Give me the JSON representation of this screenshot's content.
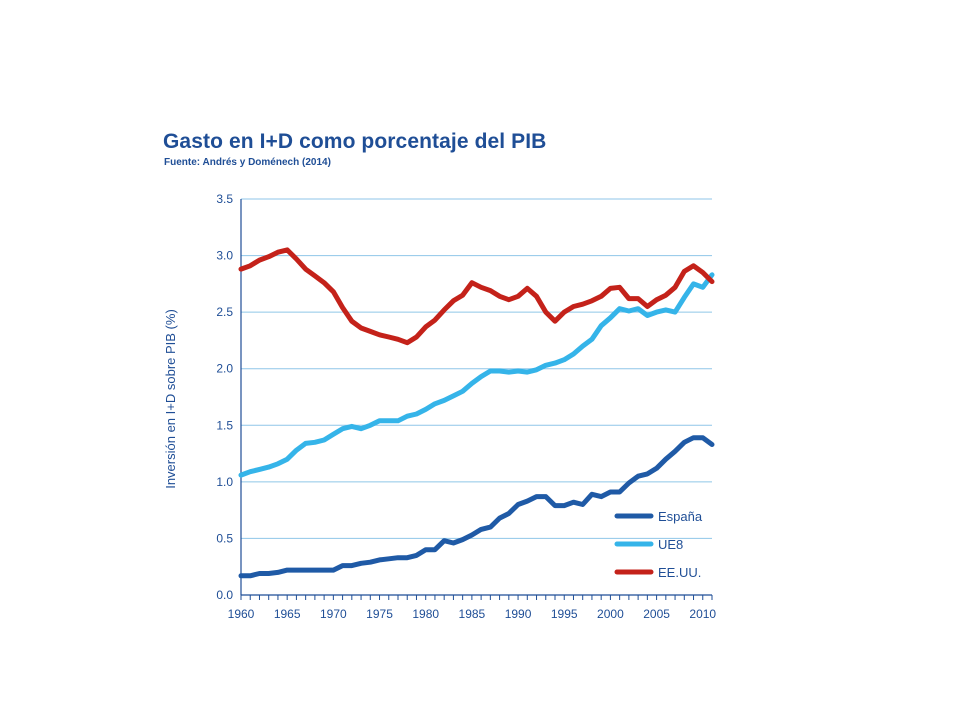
{
  "chart_data": {
    "type": "line",
    "title": "Gasto en I+D como porcentaje del PIB",
    "subtitle": "Fuente: Andrés y Doménech (2014)",
    "ylabel": "Inversión en I+D sobre PIB (%)",
    "xlabel": "",
    "xlim": [
      1960,
      2011
    ],
    "ylim": [
      0,
      3.5
    ],
    "grid": true,
    "legend_position": "bottom-right",
    "x_ticks": [
      "1960",
      "1965",
      "1970",
      "1975",
      "1980",
      "1985",
      "1990",
      "1995",
      "2000",
      "2005",
      "2010"
    ],
    "y_ticks": [
      "0.0",
      "0.5",
      "1.0",
      "1.5",
      "2.0",
      "2.5",
      "3.0",
      "3.5"
    ],
    "series": [
      {
        "name": "España",
        "color": "#1f5aa6",
        "x": [
          1960,
          1961,
          1962,
          1963,
          1964,
          1965,
          1966,
          1967,
          1968,
          1969,
          1970,
          1971,
          1972,
          1973,
          1974,
          1975,
          1976,
          1977,
          1978,
          1979,
          1980,
          1981,
          1982,
          1983,
          1984,
          1985,
          1986,
          1987,
          1988,
          1989,
          1990,
          1991,
          1992,
          1993,
          1994,
          1995,
          1996,
          1997,
          1998,
          1999,
          2000,
          2001,
          2002,
          2003,
          2004,
          2005,
          2006,
          2007,
          2008,
          2009,
          2010,
          2011
        ],
        "values": [
          0.17,
          0.17,
          0.19,
          0.19,
          0.2,
          0.22,
          0.22,
          0.22,
          0.22,
          0.22,
          0.22,
          0.26,
          0.26,
          0.28,
          0.29,
          0.31,
          0.32,
          0.33,
          0.33,
          0.35,
          0.4,
          0.4,
          0.48,
          0.46,
          0.49,
          0.53,
          0.58,
          0.6,
          0.68,
          0.72,
          0.8,
          0.83,
          0.87,
          0.87,
          0.79,
          0.79,
          0.82,
          0.8,
          0.89,
          0.87,
          0.91,
          0.91,
          0.99,
          1.05,
          1.07,
          1.12,
          1.2,
          1.27,
          1.35,
          1.39,
          1.39,
          1.33
        ]
      },
      {
        "name": "UE8",
        "color": "#35b4e9",
        "x": [
          1960,
          1961,
          1962,
          1963,
          1964,
          1965,
          1966,
          1967,
          1968,
          1969,
          1970,
          1971,
          1972,
          1973,
          1974,
          1975,
          1976,
          1977,
          1978,
          1979,
          1980,
          1981,
          1982,
          1983,
          1984,
          1985,
          1986,
          1987,
          1988,
          1989,
          1990,
          1991,
          1992,
          1993,
          1994,
          1995,
          1996,
          1997,
          1998,
          1999,
          2000,
          2001,
          2002,
          2003,
          2004,
          2005,
          2006,
          2007,
          2008,
          2009,
          2010,
          2011
        ],
        "values": [
          1.06,
          1.09,
          1.11,
          1.13,
          1.16,
          1.2,
          1.28,
          1.34,
          1.35,
          1.37,
          1.42,
          1.47,
          1.49,
          1.47,
          1.5,
          1.54,
          1.54,
          1.54,
          1.58,
          1.6,
          1.64,
          1.69,
          1.72,
          1.76,
          1.8,
          1.87,
          1.93,
          1.98,
          1.98,
          1.97,
          1.98,
          1.97,
          1.99,
          2.03,
          2.05,
          2.08,
          2.13,
          2.2,
          2.26,
          2.38,
          2.45,
          2.53,
          2.51,
          2.53,
          2.47,
          2.5,
          2.52,
          2.5,
          2.63,
          2.75,
          2.72,
          2.83
        ]
      },
      {
        "name": "EE.UU.",
        "color": "#c4221a",
        "x": [
          1960,
          1961,
          1962,
          1963,
          1964,
          1965,
          1966,
          1967,
          1968,
          1969,
          1970,
          1971,
          1972,
          1973,
          1974,
          1975,
          1976,
          1977,
          1978,
          1979,
          1980,
          1981,
          1982,
          1983,
          1984,
          1985,
          1986,
          1987,
          1988,
          1989,
          1990,
          1991,
          1992,
          1993,
          1994,
          1995,
          1996,
          1997,
          1998,
          1999,
          2000,
          2001,
          2002,
          2003,
          2004,
          2005,
          2006,
          2007,
          2008,
          2009,
          2010,
          2011
        ],
        "values": [
          2.88,
          2.91,
          2.96,
          2.99,
          3.03,
          3.05,
          2.97,
          2.88,
          2.82,
          2.76,
          2.68,
          2.54,
          2.42,
          2.36,
          2.33,
          2.3,
          2.28,
          2.26,
          2.23,
          2.28,
          2.37,
          2.43,
          2.52,
          2.6,
          2.65,
          2.76,
          2.72,
          2.69,
          2.64,
          2.61,
          2.64,
          2.71,
          2.64,
          2.5,
          2.42,
          2.5,
          2.55,
          2.57,
          2.6,
          2.64,
          2.71,
          2.72,
          2.62,
          2.62,
          2.55,
          2.61,
          2.65,
          2.72,
          2.86,
          2.91,
          2.85,
          2.77
        ]
      }
    ]
  }
}
